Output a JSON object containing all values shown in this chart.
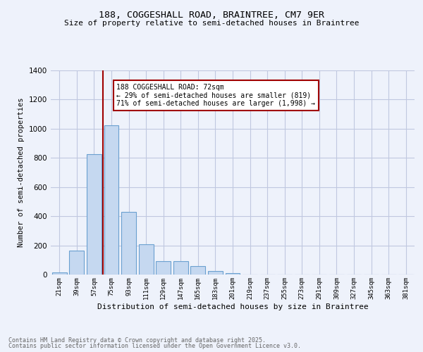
{
  "title1": "188, COGGESHALL ROAD, BRAINTREE, CM7 9ER",
  "title2": "Size of property relative to semi-detached houses in Braintree",
  "xlabel": "Distribution of semi-detached houses by size in Braintree",
  "ylabel": "Number of semi-detached properties",
  "categories": [
    "21sqm",
    "39sqm",
    "57sqm",
    "75sqm",
    "93sqm",
    "111sqm",
    "129sqm",
    "147sqm",
    "165sqm",
    "183sqm",
    "201sqm",
    "219sqm",
    "237sqm",
    "255sqm",
    "273sqm",
    "291sqm",
    "309sqm",
    "327sqm",
    "345sqm",
    "363sqm",
    "381sqm"
  ],
  "values": [
    15,
    165,
    825,
    1025,
    430,
    210,
    90,
    90,
    60,
    22,
    10,
    0,
    0,
    0,
    0,
    0,
    0,
    0,
    0,
    0,
    0
  ],
  "bar_color": "#c5d8f0",
  "bar_edge_color": "#6aa0d0",
  "grid_color": "#c0c8e0",
  "background_color": "#eef2fb",
  "vline_x": 2.5,
  "vline_color": "#a00000",
  "annotation_text": "188 COGGESHALL ROAD: 72sqm\n← 29% of semi-detached houses are smaller (819)\n71% of semi-detached houses are larger (1,998) →",
  "annotation_box_color": "#ffffff",
  "annotation_box_edge": "#a00000",
  "footer1": "Contains HM Land Registry data © Crown copyright and database right 2025.",
  "footer2": "Contains public sector information licensed under the Open Government Licence v3.0.",
  "ylim": [
    0,
    1400
  ],
  "yticks": [
    0,
    200,
    400,
    600,
    800,
    1000,
    1200,
    1400
  ]
}
